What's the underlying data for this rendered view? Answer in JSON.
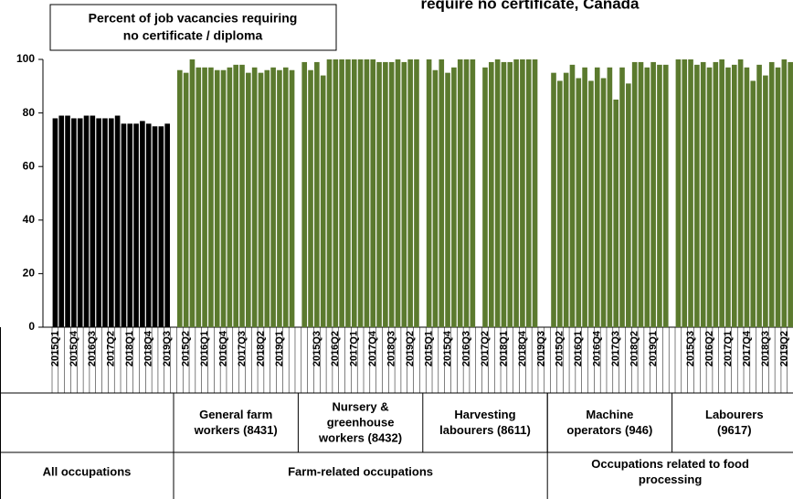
{
  "chart_data": {
    "type": "bar",
    "title": "require no certificate, Canada",
    "box_label": [
      "Percent of job vacancies requiring",
      "no certificate / diploma"
    ],
    "ylim": [
      0,
      100
    ],
    "yticks": [
      0,
      20,
      40,
      60,
      80,
      100
    ],
    "grid": false,
    "groups": [
      {
        "color": "#000000",
        "categories": [
          "2015Q1",
          null,
          null,
          "2015Q4",
          null,
          null,
          "2016Q3",
          null,
          null,
          "2017Q2",
          null,
          null,
          "2018Q1",
          null,
          null,
          "2018Q4",
          null,
          null,
          "2019Q3"
        ],
        "values": [
          78,
          79,
          79,
          78,
          78,
          79,
          79,
          78,
          78,
          78,
          79,
          76,
          76,
          76,
          77,
          76,
          75,
          75,
          76
        ]
      },
      {
        "name": [
          "General farm",
          "workers (8431)"
        ],
        "color": "#5b7a2e",
        "categories": [
          null,
          "2015Q2",
          null,
          null,
          "2016Q1",
          null,
          null,
          "2016Q4",
          null,
          null,
          "2017Q3",
          null,
          null,
          "2018Q2",
          null,
          null,
          "2019Q1",
          null,
          null
        ],
        "values": [
          96,
          95,
          100,
          97,
          97,
          97,
          96,
          96,
          97,
          98,
          98,
          95,
          97,
          95,
          96,
          97,
          96,
          97,
          96
        ]
      },
      {
        "name": [
          "Nursery &",
          "greenhouse",
          "workers (8432)"
        ],
        "color": "#5b7a2e",
        "categories": [
          null,
          null,
          "2015Q3",
          null,
          null,
          "2016Q2",
          null,
          null,
          "2017Q1",
          null,
          null,
          "2017Q4",
          null,
          null,
          "2018Q3",
          null,
          null,
          "2019Q2",
          null
        ],
        "values": [
          99,
          96,
          99,
          94,
          100,
          100,
          100,
          100,
          100,
          100,
          100,
          100,
          99,
          99,
          99,
          100,
          99,
          100,
          100
        ]
      },
      {
        "name": [
          "Harvesting",
          "labourers (8611)"
        ],
        "color": "#5b7a2e",
        "categories": [
          "2015Q1",
          null,
          null,
          "2015Q4",
          null,
          null,
          "2016Q3",
          null,
          null,
          "2017Q2",
          null,
          null,
          "2018Q1",
          null,
          null,
          "2018Q4",
          null,
          null,
          "2019Q3"
        ],
        "values": [
          100,
          96,
          100,
          95,
          97,
          100,
          100,
          100,
          null,
          97,
          99,
          100,
          99,
          99,
          100,
          100,
          100,
          100,
          null
        ]
      },
      {
        "name": [
          "Machine",
          "operators (946)"
        ],
        "color": "#5b7a2e",
        "categories": [
          null,
          "2015Q2",
          null,
          null,
          "2016Q1",
          null,
          null,
          "2016Q4",
          null,
          null,
          "2017Q3",
          null,
          null,
          "2018Q2",
          null,
          null,
          "2019Q1",
          null,
          null
        ],
        "values": [
          95,
          92,
          95,
          98,
          93,
          97,
          92,
          97,
          93,
          97,
          85,
          97,
          91,
          99,
          99,
          97,
          99,
          98,
          98
        ]
      },
      {
        "name": [
          "Labourers",
          "(9617)"
        ],
        "color": "#5b7a2e",
        "categories": [
          null,
          null,
          "2015Q3",
          null,
          null,
          "2016Q2",
          null,
          null,
          "2017Q1",
          null,
          null,
          "2017Q4",
          null,
          null,
          "2018Q3",
          null,
          null,
          "2019Q2",
          null
        ],
        "values": [
          100,
          100,
          100,
          98,
          99,
          97,
          99,
          100,
          97,
          98,
          100,
          97,
          92,
          98,
          94,
          99,
          97,
          100,
          99
        ]
      }
    ],
    "sectors": [
      [
        "All occupations"
      ],
      [
        "Farm-related occupations"
      ],
      [
        "Occupations related to food",
        "processing"
      ]
    ]
  }
}
